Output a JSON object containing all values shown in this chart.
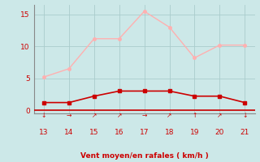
{
  "x": [
    13,
    14,
    15,
    16,
    17,
    18,
    19,
    20,
    21
  ],
  "y_rafales": [
    5.2,
    6.5,
    11.2,
    11.2,
    15.5,
    13.0,
    8.2,
    10.2,
    10.2
  ],
  "y_moyen": [
    1.2,
    1.2,
    2.2,
    3.0,
    3.0,
    3.0,
    2.2,
    2.2,
    1.2
  ],
  "line_color_rafales": "#FFB0B0",
  "line_color_moyen": "#CC0000",
  "bg_color": "#CCE8E8",
  "grid_color": "#AACCCC",
  "xlabel": "Vent moyen/en rafales ( km/h )",
  "xlabel_color": "#CC0000",
  "tick_color": "#CC0000",
  "spine_color": "#888888",
  "axis_line_color": "#CC0000",
  "xlim": [
    12.6,
    21.4
  ],
  "ylim": [
    -0.5,
    16.5
  ],
  "yticks": [
    0,
    5,
    10,
    15
  ],
  "xticks": [
    13,
    14,
    15,
    16,
    17,
    18,
    19,
    20,
    21
  ],
  "wind_arrows": [
    "↓",
    "→",
    "↗",
    "↗",
    "→",
    "↗",
    "↑",
    "↗",
    "↓"
  ]
}
